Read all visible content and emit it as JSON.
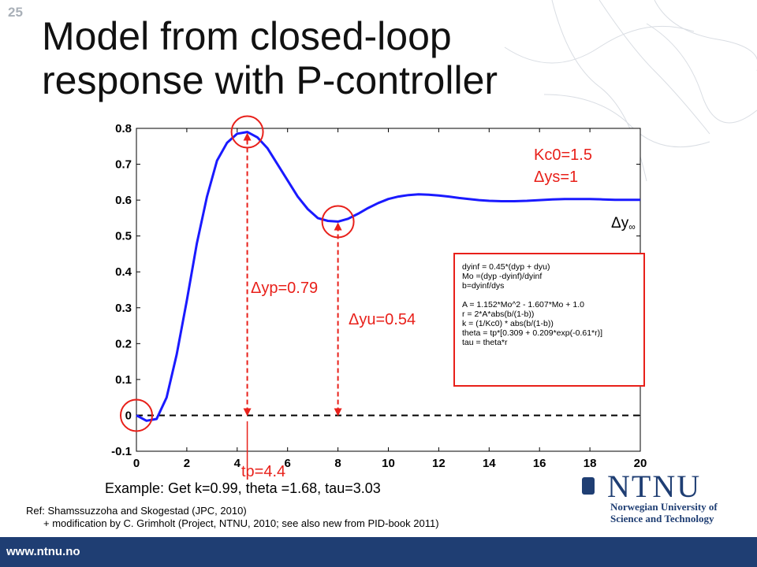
{
  "slide": {
    "number": "25",
    "title_line1": "Model from closed-loop",
    "title_line2": "response with P-controller"
  },
  "annotations": {
    "kc0": "Kc0=1.5",
    "dys": "Δys=1",
    "dy_inf_base": "Δy",
    "dy_inf_sub": "∞",
    "dyp": "Δyp=0.79",
    "dyu": "Δyu=0.54",
    "tp": "tp=4.4"
  },
  "formula_box": {
    "lines": [
      "dyinf = 0.45*(dyp + dyu)",
      "Mo =(dyp -dyinf)/dyinf",
      "b=dyinf/dys",
      "",
      "A = 1.152*Mo^2 - 1.607*Mo + 1.0",
      "r = 2*A*abs(b/(1-b))",
      "k = (1/Kc0) * abs(b/(1-b))",
      "theta = tp*[0.309 + 0.209*exp(-0.61*r)]",
      "tau = theta*r"
    ]
  },
  "example": "Example: Get k=0.99, theta =1.68, tau=3.03",
  "reference": {
    "line1": "Ref: Shamssuzzoha and Skogestad (JPC, 2010)",
    "line2": "+ modification by C. Grimholt (Project, NTNU, 2010; see also new from PID-book 2011)"
  },
  "logo": {
    "word": "NTNU",
    "sub1": "Norwegian University of",
    "sub2": "Science and Technology"
  },
  "footer": {
    "url": "www.ntnu.no"
  },
  "colors": {
    "curve": "#1a1aff",
    "annotation": "#e8201a",
    "brand": "#1f3e73"
  },
  "chart_data": {
    "type": "line",
    "title": "",
    "xlabel": "",
    "ylabel": "",
    "xlim": [
      0,
      20
    ],
    "ylim": [
      -0.1,
      0.8
    ],
    "xticks": [
      0,
      2,
      4,
      6,
      8,
      10,
      12,
      14,
      16,
      18,
      20
    ],
    "yticks": [
      -0.1,
      0,
      0.1,
      0.2,
      0.3,
      0.4,
      0.5,
      0.6,
      0.7,
      0.8
    ],
    "grid": false,
    "series": [
      {
        "x": [
          0,
          0.4,
          0.8,
          1.2,
          1.6,
          2.0,
          2.4,
          2.8,
          3.2,
          3.6,
          4.0,
          4.4,
          4.8,
          5.2,
          5.6,
          6.0,
          6.4,
          6.8,
          7.2,
          7.6,
          8.0,
          8.4,
          8.8,
          9.2,
          9.6,
          10.0,
          10.4,
          10.8,
          11.2,
          11.6,
          12.0,
          12.4,
          12.8,
          13.2,
          13.6,
          14.0,
          14.5,
          15.0,
          15.5,
          16.0,
          16.5,
          17.0,
          17.5,
          18.0,
          18.5,
          19.0,
          19.5,
          20.0
        ],
        "values": [
          0,
          -0.015,
          -0.01,
          0.05,
          0.17,
          0.32,
          0.48,
          0.61,
          0.71,
          0.76,
          0.785,
          0.79,
          0.775,
          0.745,
          0.7,
          0.655,
          0.61,
          0.575,
          0.55,
          0.542,
          0.54,
          0.548,
          0.562,
          0.578,
          0.592,
          0.603,
          0.61,
          0.614,
          0.616,
          0.615,
          0.613,
          0.61,
          0.606,
          0.603,
          0.6,
          0.598,
          0.597,
          0.597,
          0.598,
          0.6,
          0.602,
          0.603,
          0.603,
          0.603,
          0.602,
          0.601,
          0.601,
          0.601
        ]
      }
    ],
    "reference_line_y": 0,
    "markers": [
      {
        "x": 0,
        "y": 0
      },
      {
        "x": 4.4,
        "y": 0.79
      },
      {
        "x": 8.0,
        "y": 0.54
      }
    ],
    "arrows": [
      {
        "x": 4.4,
        "from_y": 0,
        "to_y": 0.79
      },
      {
        "x": 8.0,
        "from_y": 0,
        "to_y": 0.54
      }
    ]
  }
}
